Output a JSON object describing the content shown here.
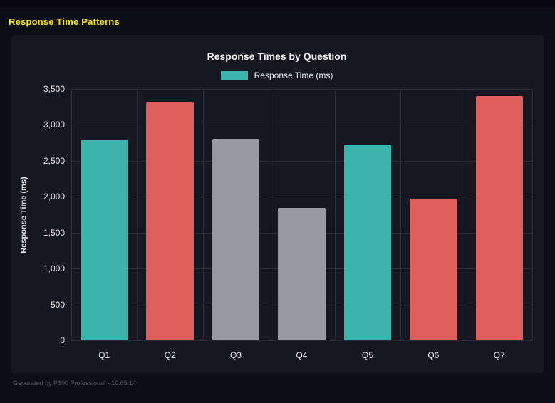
{
  "page": {
    "title": "Response Time Patterns",
    "footer": "Generated by P300 Professional - 10:05:14"
  },
  "chart_data": {
    "type": "bar",
    "title": "Response Times by Question",
    "legend": [
      {
        "label": "Response Time (ms)",
        "color": "#3bb4ab"
      }
    ],
    "legend_position": "top",
    "categories": [
      "Q1",
      "Q2",
      "Q3",
      "Q4",
      "Q5",
      "Q6",
      "Q7"
    ],
    "values": [
      2800,
      3320,
      2810,
      1840,
      2730,
      1960,
      3400
    ],
    "bar_colors": [
      "#3bb4ab",
      "#e05e5e",
      "#989aa1",
      "#989aa1",
      "#3bb4ab",
      "#e05e5e",
      "#e05e5e"
    ],
    "xlabel": "",
    "ylabel": "Response Time (ms)",
    "ylim": [
      0,
      3500
    ],
    "ytick_values": [
      3500,
      3000,
      2500,
      2000,
      1500,
      1000,
      500,
      0
    ],
    "ytick_labels": [
      "3,500",
      "3,000",
      "2,500",
      "2,000",
      "1,500",
      "1,000",
      "500",
      "0"
    ],
    "grid": true,
    "colors": {
      "teal": "#3bb4ab",
      "red": "#e05e5e",
      "gray": "#989aa1",
      "accent_title": "#ffe600",
      "panel_bg": "#171721",
      "page_bg": "#0d0d15",
      "grid_line": "#2c2c39"
    }
  }
}
